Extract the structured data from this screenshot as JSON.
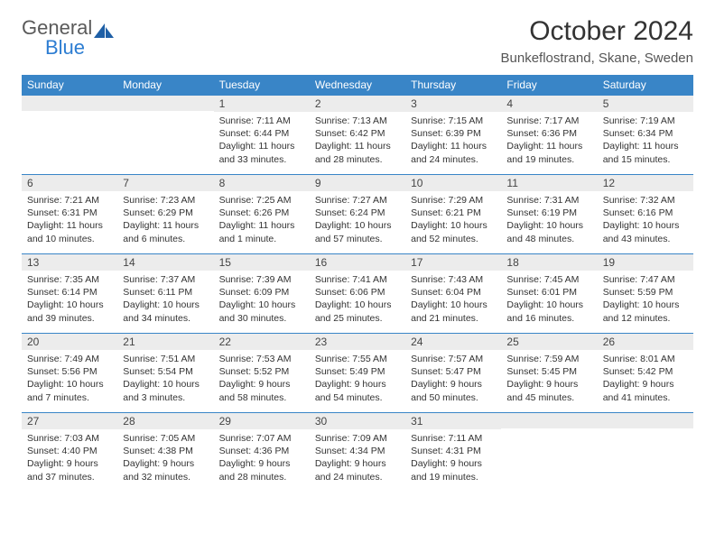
{
  "brand": {
    "word1": "General",
    "word2": "Blue",
    "icon_color": "#1e5fa6",
    "word1_color": "#5a5a5a",
    "word2_color": "#2d7dd2"
  },
  "header": {
    "title": "October 2024",
    "location": "Bunkeflostrand, Skane, Sweden"
  },
  "style": {
    "header_bg": "#3985c7",
    "daynum_bg": "#ececec",
    "row_border": "#3985c7"
  },
  "weekdays": [
    "Sunday",
    "Monday",
    "Tuesday",
    "Wednesday",
    "Thursday",
    "Friday",
    "Saturday"
  ],
  "weeks": [
    [
      {
        "num": "",
        "lines": []
      },
      {
        "num": "",
        "lines": []
      },
      {
        "num": "1",
        "lines": [
          "Sunrise: 7:11 AM",
          "Sunset: 6:44 PM",
          "Daylight: 11 hours and 33 minutes."
        ]
      },
      {
        "num": "2",
        "lines": [
          "Sunrise: 7:13 AM",
          "Sunset: 6:42 PM",
          "Daylight: 11 hours and 28 minutes."
        ]
      },
      {
        "num": "3",
        "lines": [
          "Sunrise: 7:15 AM",
          "Sunset: 6:39 PM",
          "Daylight: 11 hours and 24 minutes."
        ]
      },
      {
        "num": "4",
        "lines": [
          "Sunrise: 7:17 AM",
          "Sunset: 6:36 PM",
          "Daylight: 11 hours and 19 minutes."
        ]
      },
      {
        "num": "5",
        "lines": [
          "Sunrise: 7:19 AM",
          "Sunset: 6:34 PM",
          "Daylight: 11 hours and 15 minutes."
        ]
      }
    ],
    [
      {
        "num": "6",
        "lines": [
          "Sunrise: 7:21 AM",
          "Sunset: 6:31 PM",
          "Daylight: 11 hours and 10 minutes."
        ]
      },
      {
        "num": "7",
        "lines": [
          "Sunrise: 7:23 AM",
          "Sunset: 6:29 PM",
          "Daylight: 11 hours and 6 minutes."
        ]
      },
      {
        "num": "8",
        "lines": [
          "Sunrise: 7:25 AM",
          "Sunset: 6:26 PM",
          "Daylight: 11 hours and 1 minute."
        ]
      },
      {
        "num": "9",
        "lines": [
          "Sunrise: 7:27 AM",
          "Sunset: 6:24 PM",
          "Daylight: 10 hours and 57 minutes."
        ]
      },
      {
        "num": "10",
        "lines": [
          "Sunrise: 7:29 AM",
          "Sunset: 6:21 PM",
          "Daylight: 10 hours and 52 minutes."
        ]
      },
      {
        "num": "11",
        "lines": [
          "Sunrise: 7:31 AM",
          "Sunset: 6:19 PM",
          "Daylight: 10 hours and 48 minutes."
        ]
      },
      {
        "num": "12",
        "lines": [
          "Sunrise: 7:32 AM",
          "Sunset: 6:16 PM",
          "Daylight: 10 hours and 43 minutes."
        ]
      }
    ],
    [
      {
        "num": "13",
        "lines": [
          "Sunrise: 7:35 AM",
          "Sunset: 6:14 PM",
          "Daylight: 10 hours and 39 minutes."
        ]
      },
      {
        "num": "14",
        "lines": [
          "Sunrise: 7:37 AM",
          "Sunset: 6:11 PM",
          "Daylight: 10 hours and 34 minutes."
        ]
      },
      {
        "num": "15",
        "lines": [
          "Sunrise: 7:39 AM",
          "Sunset: 6:09 PM",
          "Daylight: 10 hours and 30 minutes."
        ]
      },
      {
        "num": "16",
        "lines": [
          "Sunrise: 7:41 AM",
          "Sunset: 6:06 PM",
          "Daylight: 10 hours and 25 minutes."
        ]
      },
      {
        "num": "17",
        "lines": [
          "Sunrise: 7:43 AM",
          "Sunset: 6:04 PM",
          "Daylight: 10 hours and 21 minutes."
        ]
      },
      {
        "num": "18",
        "lines": [
          "Sunrise: 7:45 AM",
          "Sunset: 6:01 PM",
          "Daylight: 10 hours and 16 minutes."
        ]
      },
      {
        "num": "19",
        "lines": [
          "Sunrise: 7:47 AM",
          "Sunset: 5:59 PM",
          "Daylight: 10 hours and 12 minutes."
        ]
      }
    ],
    [
      {
        "num": "20",
        "lines": [
          "Sunrise: 7:49 AM",
          "Sunset: 5:56 PM",
          "Daylight: 10 hours and 7 minutes."
        ]
      },
      {
        "num": "21",
        "lines": [
          "Sunrise: 7:51 AM",
          "Sunset: 5:54 PM",
          "Daylight: 10 hours and 3 minutes."
        ]
      },
      {
        "num": "22",
        "lines": [
          "Sunrise: 7:53 AM",
          "Sunset: 5:52 PM",
          "Daylight: 9 hours and 58 minutes."
        ]
      },
      {
        "num": "23",
        "lines": [
          "Sunrise: 7:55 AM",
          "Sunset: 5:49 PM",
          "Daylight: 9 hours and 54 minutes."
        ]
      },
      {
        "num": "24",
        "lines": [
          "Sunrise: 7:57 AM",
          "Sunset: 5:47 PM",
          "Daylight: 9 hours and 50 minutes."
        ]
      },
      {
        "num": "25",
        "lines": [
          "Sunrise: 7:59 AM",
          "Sunset: 5:45 PM",
          "Daylight: 9 hours and 45 minutes."
        ]
      },
      {
        "num": "26",
        "lines": [
          "Sunrise: 8:01 AM",
          "Sunset: 5:42 PM",
          "Daylight: 9 hours and 41 minutes."
        ]
      }
    ],
    [
      {
        "num": "27",
        "lines": [
          "Sunrise: 7:03 AM",
          "Sunset: 4:40 PM",
          "Daylight: 9 hours and 37 minutes."
        ]
      },
      {
        "num": "28",
        "lines": [
          "Sunrise: 7:05 AM",
          "Sunset: 4:38 PM",
          "Daylight: 9 hours and 32 minutes."
        ]
      },
      {
        "num": "29",
        "lines": [
          "Sunrise: 7:07 AM",
          "Sunset: 4:36 PM",
          "Daylight: 9 hours and 28 minutes."
        ]
      },
      {
        "num": "30",
        "lines": [
          "Sunrise: 7:09 AM",
          "Sunset: 4:34 PM",
          "Daylight: 9 hours and 24 minutes."
        ]
      },
      {
        "num": "31",
        "lines": [
          "Sunrise: 7:11 AM",
          "Sunset: 4:31 PM",
          "Daylight: 9 hours and 19 minutes."
        ]
      },
      {
        "num": "",
        "lines": []
      },
      {
        "num": "",
        "lines": []
      }
    ]
  ]
}
